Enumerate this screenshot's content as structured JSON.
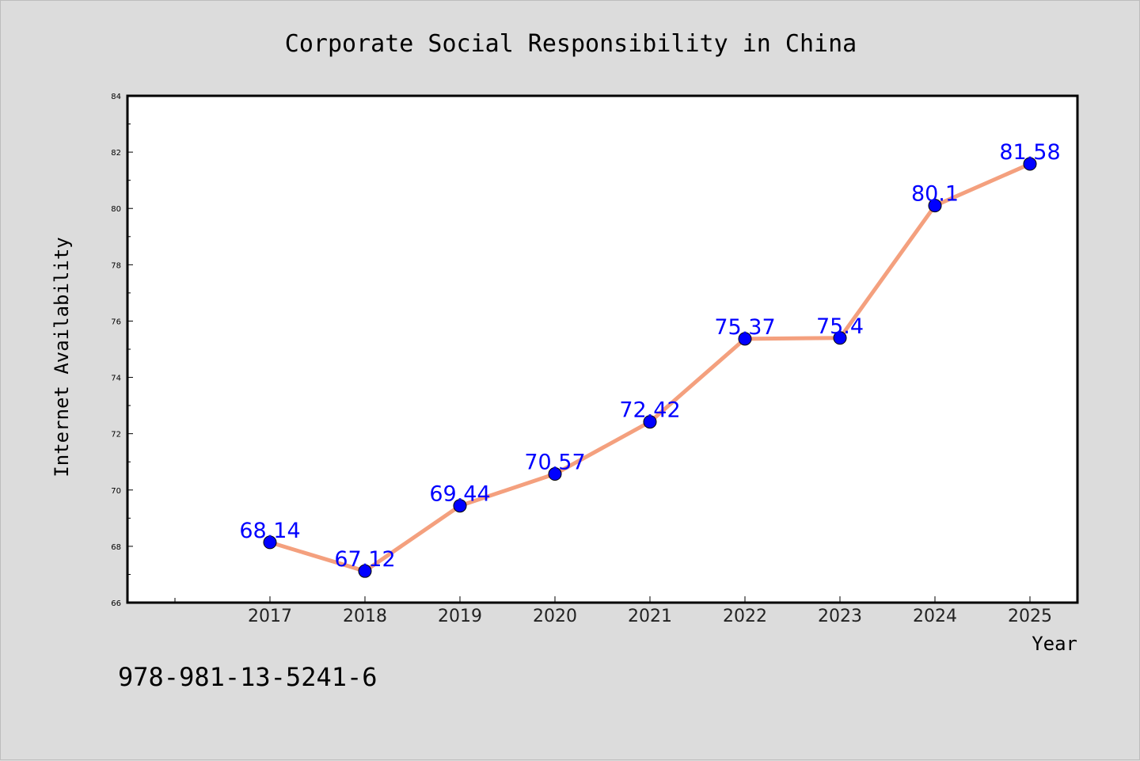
{
  "chart_data": {
    "type": "line",
    "title": "Corporate Social Responsibility in China",
    "xlabel": "Year",
    "ylabel": "Internet Availability",
    "categories": [
      "2017",
      "2018",
      "2019",
      "2020",
      "2021",
      "2022",
      "2023",
      "2024",
      "2025"
    ],
    "series": [
      {
        "values": [
          68.14,
          67.12,
          69.44,
          70.57,
          72.42,
          75.37,
          75.4,
          80.1,
          81.58
        ]
      }
    ],
    "data_labels": [
      "68.14",
      "67.12",
      "69.44",
      "70.57",
      "72.42",
      "75.37",
      "75.4",
      "80.1",
      "81.58"
    ],
    "ylim": [
      66,
      84
    ],
    "yticks": [
      "66",
      "68",
      "70",
      "72",
      "74",
      "76",
      "78",
      "80",
      "82",
      "84"
    ],
    "grid": false,
    "line_color": "#f4a07e",
    "marker_color": "#0000ff",
    "label_color": "#0000ff",
    "background_color": "#dcdcdc",
    "plot_background": "#ffffff"
  },
  "footer": {
    "code": "978-981-13-5241-6"
  }
}
